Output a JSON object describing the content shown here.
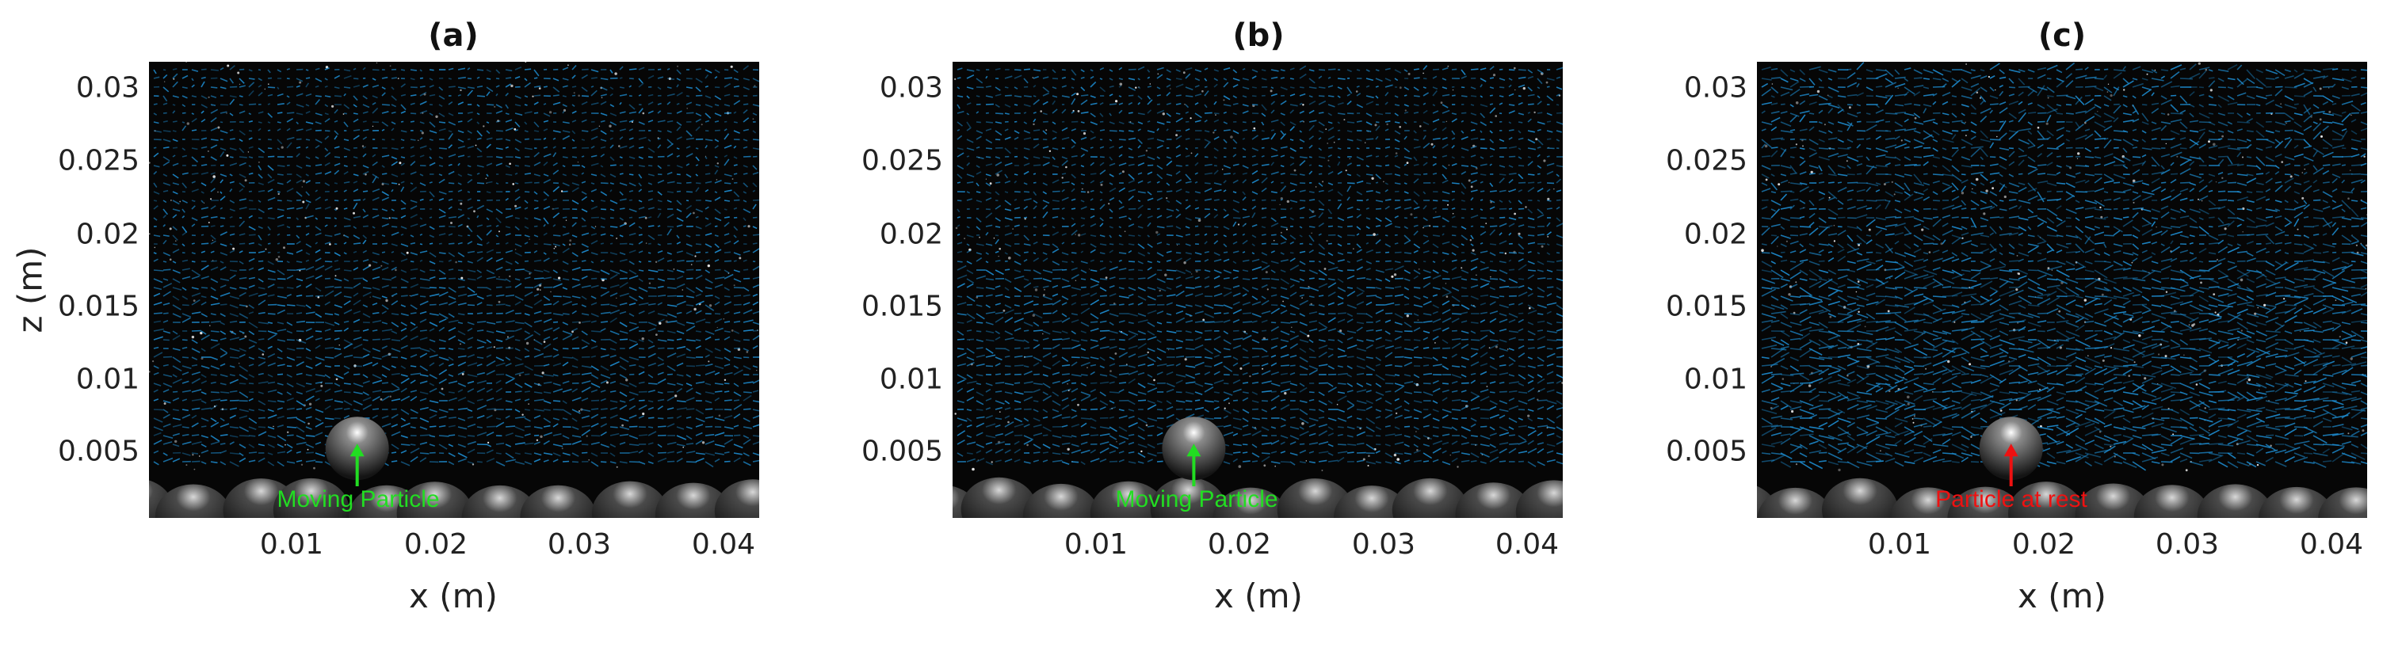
{
  "chart_data": [
    {
      "type": "scatter",
      "title": "(a)",
      "xlabel": "x (m)",
      "ylabel": "z (m)",
      "xlim": [
        0,
        0.0425
      ],
      "ylim": [
        0,
        0.0315
      ],
      "xticks": [
        "0.01",
        "0.02",
        "0.03",
        "0.04"
      ],
      "yticks": [
        "0.005",
        "0.01",
        "0.015",
        "0.02",
        "0.025",
        "0.03"
      ],
      "vector_color": "#1e90d6",
      "annotation": {
        "text": "Moving Particle",
        "color": "#22dd22",
        "x": 0.0145,
        "z": 0.0045
      },
      "particle": {
        "x": 0.0145,
        "z": 0.0048,
        "state": "moving"
      }
    },
    {
      "type": "scatter",
      "title": "(b)",
      "xlabel": "x (m)",
      "ylabel": "",
      "xlim": [
        0,
        0.0425
      ],
      "ylim": [
        0,
        0.0315
      ],
      "xticks": [
        "0.01",
        "0.02",
        "0.03",
        "0.04"
      ],
      "yticks": [
        "0.005",
        "0.01",
        "0.015",
        "0.02",
        "0.025",
        "0.03"
      ],
      "vector_color": "#1e90d6",
      "annotation": {
        "text": "Moving Particle",
        "color": "#22dd22",
        "x": 0.0168,
        "z": 0.0045
      },
      "particle": {
        "x": 0.0168,
        "z": 0.0048,
        "state": "moving"
      }
    },
    {
      "type": "scatter",
      "title": "(c)",
      "xlabel": "x (m)",
      "ylabel": "",
      "xlim": [
        0,
        0.0425
      ],
      "ylim": [
        0,
        0.0315
      ],
      "xticks": [
        "0.01",
        "0.02",
        "0.03",
        "0.04"
      ],
      "yticks": [
        "0.005",
        "0.01",
        "0.015",
        "0.02",
        "0.025",
        "0.03"
      ],
      "vector_color": "#1e90d6",
      "annotation": {
        "text": "Particle at rest",
        "color": "#ee1111",
        "x": 0.0177,
        "z": 0.0045
      },
      "particle": {
        "x": 0.0177,
        "z": 0.0048,
        "state": "rest"
      }
    }
  ]
}
